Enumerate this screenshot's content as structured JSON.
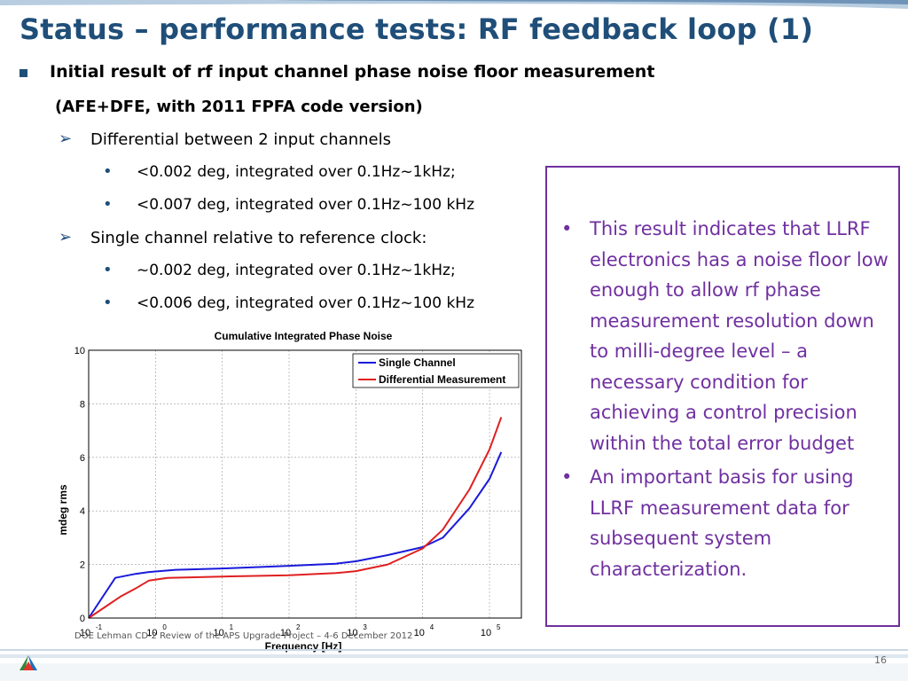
{
  "slide": {
    "title": "Status – performance tests: RF feedback loop (1)",
    "page_number": "16",
    "footer": "DOE Lehman CD-2 Review of the APS Upgrade Project – 4-6 December 2012"
  },
  "content": {
    "heading": "Initial result of rf input channel phase noise floor measurement",
    "subheading": "(AFE+DFE, with 2011 FPFA code version)",
    "sections": [
      {
        "label": "Differential between 2 input channels",
        "items": [
          "<0.002 deg, integrated over 0.1Hz~1kHz;",
          "<0.007 deg, integrated over 0.1Hz~100 kHz"
        ]
      },
      {
        "label": "Single channel relative to reference clock:",
        "items": [
          "~0.002 deg, integrated over 0.1Hz~1kHz;",
          "<0.006 deg, integrated over 0.1Hz~100 kHz"
        ]
      }
    ]
  },
  "callout": {
    "border_color": "#7030a0",
    "bullets": [
      "This result indicates that LLRF electronics has a noise floor low enough to allow rf phase measurement resolution down to milli-degree level – a necessary condition for achieving a control precision within the total error budget",
      "An important basis for using LLRF measurement data for subsequent system characterization."
    ]
  },
  "chart_data": {
    "type": "line",
    "title": "Cumulative Integrated Phase Noise",
    "xlabel": "Frequency [Hz]",
    "ylabel": "mdeg rms",
    "x_scale": "log",
    "xlim": [
      0.1,
      300000
    ],
    "ylim": [
      0,
      10
    ],
    "x_ticks": [
      {
        "value": 0.1,
        "base": "10",
        "exp": "-1"
      },
      {
        "value": 1,
        "base": "10",
        "exp": "0"
      },
      {
        "value": 10,
        "base": "10",
        "exp": "1"
      },
      {
        "value": 100,
        "base": "10",
        "exp": "2"
      },
      {
        "value": 1000,
        "base": "10",
        "exp": "3"
      },
      {
        "value": 10000,
        "base": "10",
        "exp": "4"
      },
      {
        "value": 100000,
        "base": "10",
        "exp": "5"
      }
    ],
    "y_ticks": [
      0,
      2,
      4,
      6,
      8,
      10
    ],
    "grid": true,
    "legend_position": "top-right",
    "series": [
      {
        "name": "Single Channel",
        "color": "#1a1adb",
        "points": [
          [
            0.1,
            0
          ],
          [
            0.25,
            1.5
          ],
          [
            0.5,
            1.65
          ],
          [
            0.8,
            1.72
          ],
          [
            2,
            1.8
          ],
          [
            10,
            1.85
          ],
          [
            100,
            1.95
          ],
          [
            500,
            2.03
          ],
          [
            1000,
            2.12
          ],
          [
            3000,
            2.35
          ],
          [
            10000,
            2.65
          ],
          [
            20000,
            3.0
          ],
          [
            50000,
            4.1
          ],
          [
            100000,
            5.2
          ],
          [
            150000,
            6.2
          ]
        ]
      },
      {
        "name": "Differential Measurement",
        "color": "#e02020",
        "points": [
          [
            0.1,
            0
          ],
          [
            0.3,
            0.8
          ],
          [
            0.5,
            1.1
          ],
          [
            0.8,
            1.4
          ],
          [
            1.5,
            1.5
          ],
          [
            10,
            1.55
          ],
          [
            100,
            1.6
          ],
          [
            500,
            1.68
          ],
          [
            1000,
            1.75
          ],
          [
            3000,
            2.0
          ],
          [
            10000,
            2.6
          ],
          [
            20000,
            3.3
          ],
          [
            50000,
            4.8
          ],
          [
            100000,
            6.3
          ],
          [
            150000,
            7.5
          ]
        ]
      }
    ]
  }
}
